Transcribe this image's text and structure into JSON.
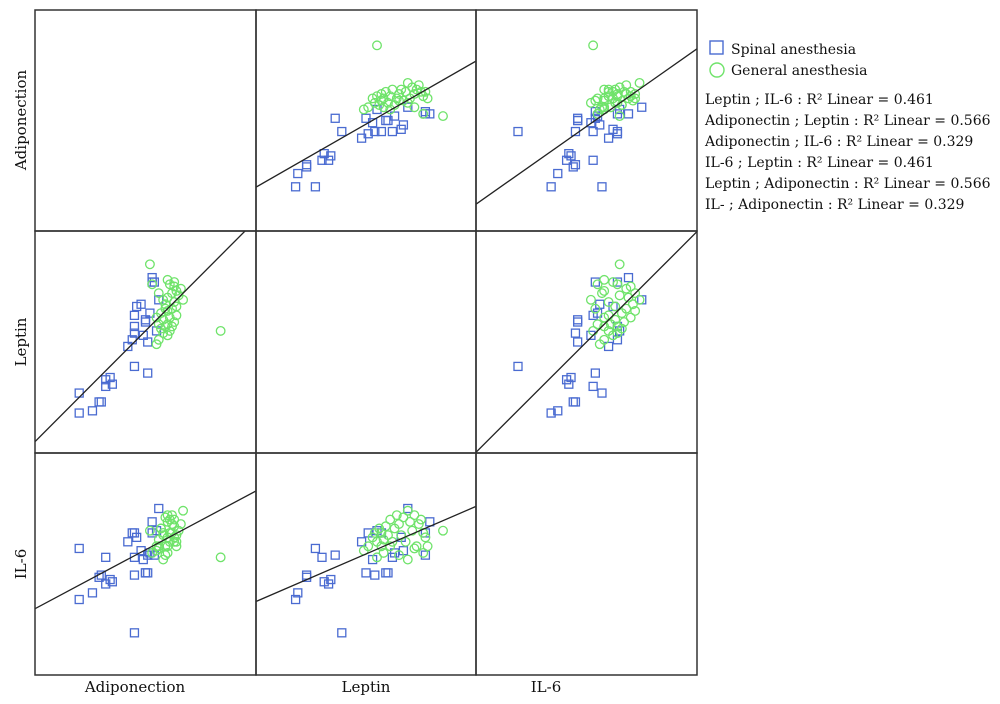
{
  "chart_data": {
    "type": "scatter",
    "subtype": "scatterplot-matrix",
    "variables": [
      "Adiponection",
      "Leptin",
      "IL-6"
    ],
    "axis_range": [
      0,
      100
    ],
    "grid": false,
    "legend_placement": "right",
    "legend": {
      "series": [
        "Spinal anesthesia",
        "General anesthesia"
      ],
      "fit_lines": [
        "Leptin ; IL-6 : R² Linear = 0.461",
        "Adiponectin ; Leptin : R² Linear = 0.566",
        "Adiponectin ; IL-6 : R² Linear = 0.329",
        "IL-6 ; Leptin : R² Linear = 0.461",
        "Leptin ; Adiponectin : R² Linear = 0.566",
        "IL- ; Adiponectin : R² Linear = 0.329"
      ]
    },
    "colors": {
      "spinal": "#4a6bd1",
      "general": "#6fe36a",
      "line": "#222222"
    },
    "point_fields": [
      "adiponectin",
      "leptin",
      "il6"
    ],
    "series": [
      {
        "name": "Spinal anesthesia",
        "marker": "square",
        "points": [
          [
            20,
            18,
            34
          ],
          [
            26,
            19,
            37
          ],
          [
            30,
            23,
            45
          ],
          [
            29,
            23,
            44
          ],
          [
            20,
            27,
            57
          ],
          [
            32,
            30,
            53
          ],
          [
            35,
            31,
            42
          ],
          [
            32,
            33,
            41
          ],
          [
            34,
            34,
            43
          ],
          [
            51,
            36,
            54
          ],
          [
            45,
            39,
            19
          ],
          [
            42,
            48,
            60
          ],
          [
            51,
            50,
            46
          ],
          [
            44,
            51,
            64
          ],
          [
            49,
            53,
            52
          ],
          [
            45,
            54,
            45
          ],
          [
            55,
            55,
            65
          ],
          [
            45,
            57,
            64
          ],
          [
            50,
            59,
            46
          ],
          [
            50,
            60,
            46
          ],
          [
            45,
            62,
            53
          ],
          [
            52,
            63,
            55
          ],
          [
            46,
            66,
            62
          ],
          [
            48,
            67,
            56
          ],
          [
            56,
            69,
            75
          ],
          [
            54,
            77,
            54
          ],
          [
            53,
            77,
            64
          ],
          [
            53,
            79,
            69
          ]
        ]
      },
      {
        "name": "General anesthesia",
        "marker": "circle",
        "points": [
          [
            84,
            55,
            53
          ],
          [
            55,
            49,
            56
          ],
          [
            56,
            51,
            58
          ],
          [
            60,
            53,
            62
          ],
          [
            58,
            54,
            64
          ],
          [
            61,
            55,
            60
          ],
          [
            57,
            56,
            66
          ],
          [
            59,
            57,
            58
          ],
          [
            62,
            57,
            64
          ],
          [
            56,
            58,
            61
          ],
          [
            60,
            58,
            55
          ],
          [
            63,
            59,
            67
          ],
          [
            58,
            60,
            63
          ],
          [
            61,
            61,
            70
          ],
          [
            64,
            62,
            60
          ],
          [
            57,
            63,
            66
          ],
          [
            60,
            64,
            72
          ],
          [
            62,
            65,
            68
          ],
          [
            64,
            66,
            63
          ],
          [
            59,
            67,
            71
          ],
          [
            63,
            68,
            60
          ],
          [
            67,
            69,
            74
          ],
          [
            60,
            70,
            69
          ],
          [
            65,
            71,
            65
          ],
          [
            62,
            72,
            72
          ],
          [
            64,
            73,
            58
          ],
          [
            66,
            74,
            68
          ],
          [
            63,
            75,
            70
          ],
          [
            61,
            76,
            64
          ],
          [
            63,
            77,
            62
          ],
          [
            60,
            78,
            58
          ],
          [
            53,
            76,
            55
          ],
          [
            52,
            85,
            65
          ],
          [
            58,
            69,
            52
          ],
          [
            55,
            61,
            58
          ],
          [
            59,
            65,
            54
          ],
          [
            56,
            72,
            57
          ]
        ]
      }
    ]
  }
}
